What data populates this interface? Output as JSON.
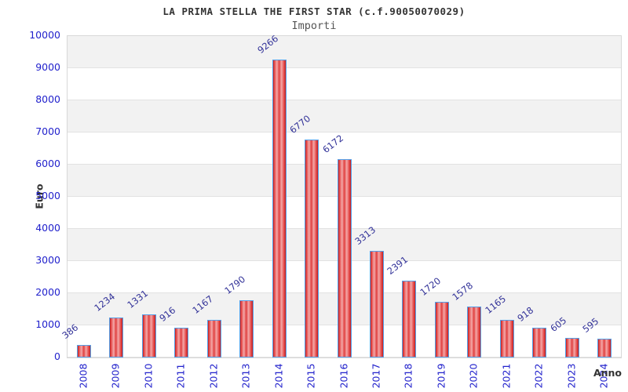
{
  "chart_data": {
    "type": "bar",
    "title": "LA PRIMA STELLA THE FIRST STAR (c.f.90050070029)",
    "subtitle": "Importi",
    "xlabel": "Anno",
    "ylabel": "Euro",
    "categories": [
      "2008",
      "2009",
      "2010",
      "2011",
      "2012",
      "2013",
      "2014",
      "2015",
      "2016",
      "2017",
      "2018",
      "2019",
      "2020",
      "2021",
      "2022",
      "2023",
      "2024"
    ],
    "values": [
      386,
      1234,
      1331,
      916,
      1167,
      1790,
      9266,
      6770,
      6172,
      3313,
      2391,
      1720,
      1578,
      1165,
      918,
      605,
      595
    ],
    "ylim": [
      0,
      10000
    ],
    "ytick_step": 1000,
    "legend": "none",
    "grid": "horizontal-bands-alternating",
    "colors": {
      "bar_fill_edge": "#c41f1f",
      "bar_fill_mid": "#f3a8a8",
      "bar_border": "#55a0e8",
      "tick_label": "#2222cc",
      "value_label": "#333399",
      "band_gray": "#f2f2f2",
      "band_white": "#ffffff",
      "grid_line": "#e2e2e2",
      "title_color": "#333333",
      "subtitle_color": "#555555",
      "axis_title_color": "#333333"
    }
  }
}
